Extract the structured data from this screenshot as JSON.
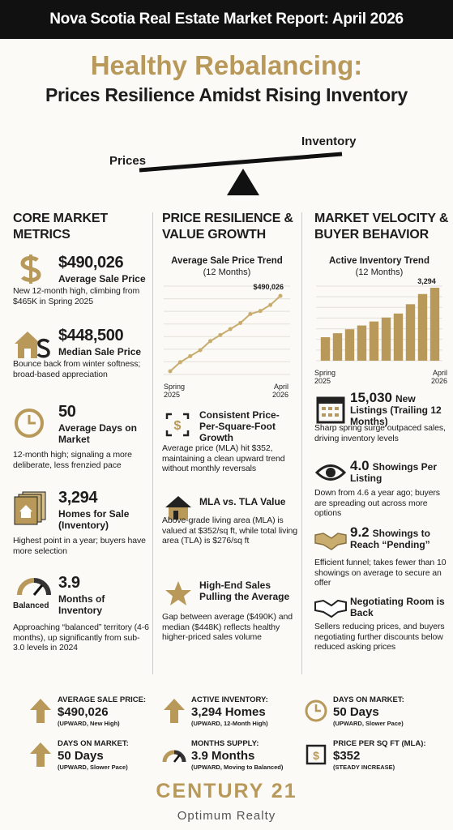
{
  "header": {
    "title": "Nova Scotia Real Estate Market Report: April 2026"
  },
  "headline": {
    "title": "Healthy Rebalancing:",
    "subtitle": "Prices Resilience Amidst Rising Inventory"
  },
  "scale": {
    "left": "Prices",
    "right": "Inventory"
  },
  "columns": [
    {
      "title": "CORE MARKET METRICS",
      "items": [
        {
          "value": "$490,026",
          "label": "Average Sale Price",
          "text": "New 12-month high, climbing from $465K in Spring 2025"
        },
        {
          "value": "$448,500",
          "label": "Median Sale Price",
          "text": "Bounce back from winter softness; broad-based appreciation"
        },
        {
          "value": "50",
          "label": "Average Days on Market",
          "text": "12-month high; signaling a more deliberate, less frenzied pace"
        },
        {
          "value": "3,294",
          "label": "Homes for Sale (Inventory)",
          "text": "Highest point in a year; buyers have more selection"
        },
        {
          "value": "3.9",
          "label": "Months of Inventory",
          "badge": "Balanced",
          "text": "Approaching “balanced” territory (4-6 months), up significantly from sub-3.0 levels in 2024"
        }
      ]
    },
    {
      "title": "PRICE RESILIENCE & VALUE GROWTH",
      "items": [
        {
          "label": "Consistent Price-Per-Square-Foot Growth",
          "text": "Average price (MLA) hit $352, maintaining a clean upward trend without monthly reversals"
        },
        {
          "label": "MLA vs. TLA Value",
          "text": "Above-grade living area (MLA) is valued at $352/sq ft, while total living area (TLA) is $276/sq ft"
        },
        {
          "label": "High-End Sales Pulling the Average",
          "text": "Gap between average ($490K) and median ($448K) reflects healthy higher-priced sales volume"
        }
      ]
    },
    {
      "title": "MARKET VELOCITY & BUYER BEHAVIOR",
      "items": [
        {
          "value": "15,030",
          "label": "New Listings (Trailing 12 Months)",
          "text": "Sharp spring surge outpaced sales, driving inventory levels"
        },
        {
          "value": "4.0",
          "label": "Showings Per Listing",
          "text": "Down from 4.6 a year ago; buyers are spreading out across more options"
        },
        {
          "value": "9.2",
          "label": "Showings to Reach “Pending”",
          "text": "Efficient funnel; takes fewer than 10 showings on average to secure an offer"
        },
        {
          "label": "Negotiating Room is Back",
          "text": "Sellers reducing prices, and buyers negotiating further discounts below reduced asking prices"
        }
      ]
    }
  ],
  "chart_data": [
    {
      "type": "line",
      "title": "Average Sale Price Trend",
      "subtitle": "(12 Months)",
      "color": "#c8ad6e",
      "categories": [
        "Spring 2025",
        null,
        null,
        null,
        null,
        null,
        null,
        null,
        null,
        null,
        null,
        "April 2026"
      ],
      "values": [
        465000,
        468000,
        470000,
        472000,
        475000,
        477000,
        479000,
        481000,
        484000,
        485000,
        487000,
        490026
      ],
      "value_labels": [
        null,
        null,
        null,
        null,
        null,
        null,
        null,
        null,
        null,
        null,
        null,
        "$490,026"
      ]
    },
    {
      "type": "bar",
      "title": "Active Inventory Trend",
      "subtitle": "(12 Months)",
      "color": "#b8995a",
      "categories": [
        "Spring 2025",
        null,
        null,
        null,
        null,
        null,
        null,
        null,
        null,
        "April 2026"
      ],
      "values": [
        1060,
        1240,
        1420,
        1590,
        1770,
        1950,
        2130,
        2550,
        3010,
        3294
      ],
      "value_labels": [
        null,
        null,
        null,
        null,
        null,
        null,
        null,
        null,
        null,
        "3,294"
      ]
    }
  ],
  "summary": [
    {
      "label": "AVERAGE SALE PRICE:",
      "value": "$490,026",
      "note": "(UPWARD, New High)"
    },
    {
      "label": "ACTIVE INVENTORY:",
      "value": "3,294 Homes",
      "note": "(UPWARD, 12-Month High)"
    },
    {
      "label": "DAYS ON MARKET:",
      "value": "50 Days",
      "note": "(UPWARD, Slower Pace)"
    },
    {
      "label": "DAYS ON MARKET:",
      "value": "50 Days",
      "note": "(UPWARD, Slower Pace)"
    },
    {
      "label": "MONTHS SUPPLY:",
      "value": "3.9 Months",
      "note": "(UPWARD, Moving to Balanced)"
    },
    {
      "label": "PRICE PER SQ FT (MLA):",
      "value": "$352",
      "note": "(STEADY INCREASE)"
    }
  ],
  "footer": {
    "brand": "CENTURY 21",
    "office": "Optimum Realty"
  }
}
